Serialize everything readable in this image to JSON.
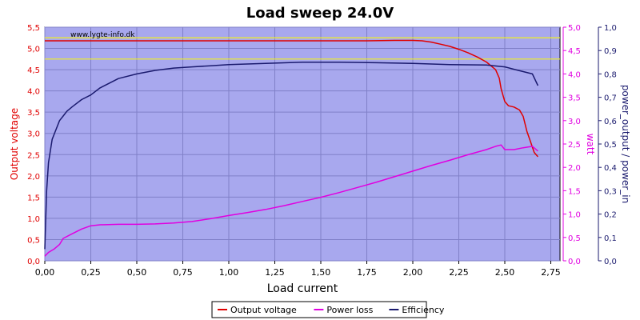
{
  "chart_data": {
    "type": "line",
    "title": "Load sweep 24.0V",
    "watermark": "www.lygte-info.dk",
    "xlabel": "Load current",
    "ylabel_left": "Output voltage",
    "ylabel_right1": "watt",
    "ylabel_right2": "power_output / power_in",
    "xlim": [
      0,
      2.8
    ],
    "ylim_left": [
      0,
      5.5
    ],
    "ylim_right1": [
      0,
      5.0
    ],
    "ylim_right2": [
      0,
      1.0
    ],
    "x_ticks": [
      "0,00",
      "0,25",
      "0,50",
      "0,75",
      "1,00",
      "1,25",
      "1,50",
      "1,75",
      "2,00",
      "2,25",
      "2,50",
      "2,75"
    ],
    "y_left_ticks": [
      "0,0",
      "0,5",
      "1,0",
      "1,5",
      "2,0",
      "2,5",
      "3,0",
      "3,5",
      "4,0",
      "4,5",
      "5,0",
      "5,5"
    ],
    "y_right1_ticks": [
      "0,0",
      "0,5",
      "1,0",
      "1,5",
      "2,0",
      "2,5",
      "3,0",
      "3,5",
      "4,0",
      "4,5",
      "5,0"
    ],
    "y_right2_ticks": [
      "0,0",
      "0,1",
      "0,2",
      "0,3",
      "0,4",
      "0,5",
      "0,6",
      "0,7",
      "0,8",
      "0,9",
      "1,0"
    ],
    "reference_lines_left": [
      5.25,
      4.75
    ],
    "grid": true,
    "legend_position": "bottom",
    "series": [
      {
        "name": "Output voltage",
        "color": "#e00000",
        "axis": "left",
        "x": [
          0.0,
          0.25,
          0.5,
          0.75,
          1.0,
          1.25,
          1.5,
          1.75,
          1.9,
          2.0,
          2.05,
          2.1,
          2.15,
          2.2,
          2.25,
          2.3,
          2.35,
          2.4,
          2.45,
          2.47,
          2.48,
          2.5,
          2.52,
          2.55,
          2.58,
          2.6,
          2.62,
          2.64,
          2.66,
          2.68
        ],
        "values": [
          5.18,
          5.18,
          5.18,
          5.18,
          5.18,
          5.18,
          5.18,
          5.18,
          5.19,
          5.19,
          5.18,
          5.15,
          5.1,
          5.05,
          4.98,
          4.9,
          4.8,
          4.68,
          4.5,
          4.3,
          4.05,
          3.75,
          3.65,
          3.62,
          3.55,
          3.4,
          3.05,
          2.8,
          2.55,
          2.45
        ]
      },
      {
        "name": "Power loss",
        "color": "#e000e0",
        "axis": "right1",
        "x": [
          0.0,
          0.02,
          0.05,
          0.08,
          0.1,
          0.15,
          0.2,
          0.25,
          0.3,
          0.4,
          0.5,
          0.6,
          0.7,
          0.8,
          0.9,
          1.0,
          1.1,
          1.2,
          1.3,
          1.4,
          1.5,
          1.6,
          1.7,
          1.8,
          1.9,
          2.0,
          2.1,
          2.2,
          2.3,
          2.4,
          2.45,
          2.48,
          2.5,
          2.55,
          2.6,
          2.65,
          2.68
        ],
        "values": [
          0.1,
          0.18,
          0.25,
          0.35,
          0.48,
          0.58,
          0.68,
          0.75,
          0.77,
          0.78,
          0.78,
          0.79,
          0.81,
          0.84,
          0.9,
          0.97,
          1.03,
          1.1,
          1.18,
          1.27,
          1.36,
          1.46,
          1.57,
          1.68,
          1.8,
          1.92,
          2.04,
          2.15,
          2.27,
          2.38,
          2.45,
          2.48,
          2.38,
          2.38,
          2.42,
          2.45,
          2.35
        ]
      },
      {
        "name": "Efficiency",
        "color": "#1a1a6e",
        "axis": "right2",
        "x": [
          0.0,
          0.01,
          0.02,
          0.04,
          0.06,
          0.08,
          0.1,
          0.12,
          0.15,
          0.2,
          0.25,
          0.3,
          0.35,
          0.4,
          0.5,
          0.6,
          0.7,
          0.8,
          0.9,
          1.0,
          1.2,
          1.4,
          1.6,
          1.8,
          2.0,
          2.2,
          2.4,
          2.5,
          2.55,
          2.6,
          2.65,
          2.68
        ],
        "values": [
          0.05,
          0.3,
          0.42,
          0.52,
          0.56,
          0.6,
          0.62,
          0.64,
          0.66,
          0.69,
          0.71,
          0.74,
          0.76,
          0.78,
          0.8,
          0.815,
          0.825,
          0.83,
          0.835,
          0.84,
          0.845,
          0.85,
          0.85,
          0.848,
          0.845,
          0.84,
          0.838,
          0.83,
          0.82,
          0.81,
          0.8,
          0.75
        ]
      }
    ]
  }
}
